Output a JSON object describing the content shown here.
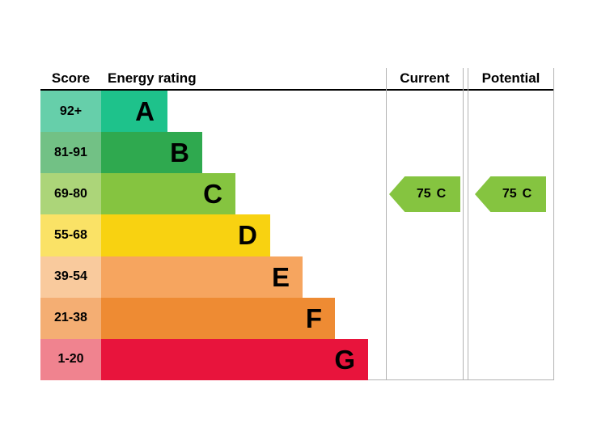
{
  "header": {
    "score": "Score",
    "energy_rating": "Energy rating",
    "current": "Current",
    "potential": "Potential"
  },
  "bands": [
    {
      "score": "92+",
      "letter": "A",
      "bar_color": "#1ec28b",
      "score_color": "#66cfaa"
    },
    {
      "score": "81-91",
      "letter": "B",
      "bar_color": "#2fa94f",
      "score_color": "#72c185"
    },
    {
      "score": "69-80",
      "letter": "C",
      "bar_color": "#85c440",
      "score_color": "#acd579"
    },
    {
      "score": "55-68",
      "letter": "D",
      "bar_color": "#f8d211",
      "score_color": "#fae266"
    },
    {
      "score": "39-54",
      "letter": "E",
      "bar_color": "#f6a55f",
      "score_color": "#f9ca9d"
    },
    {
      "score": "21-38",
      "letter": "F",
      "bar_color": "#ee8b33",
      "score_color": "#f4ae73"
    },
    {
      "score": "1-20",
      "letter": "G",
      "bar_color": "#e8143c",
      "score_color": "#f0838f"
    }
  ],
  "current": {
    "score": "75",
    "band": "C",
    "arrow_color": "#85c440"
  },
  "potential": {
    "score": "75",
    "band": "C",
    "arrow_color": "#85c440"
  },
  "chart_data": {
    "type": "bar",
    "title": "EPC energy rating chart",
    "categories": [
      "A",
      "B",
      "C",
      "D",
      "E",
      "F",
      "G"
    ],
    "score_ranges": [
      "92+",
      "81-91",
      "69-80",
      "55-68",
      "39-54",
      "21-38",
      "1-20"
    ],
    "bar_lengths_relative": [
      1,
      1.52,
      2.02,
      2.55,
      3.04,
      3.52,
      4.02
    ],
    "columns": [
      "Score",
      "Energy rating",
      "Current",
      "Potential"
    ],
    "current": {
      "score": 75,
      "band": "C"
    },
    "potential": {
      "score": 75,
      "band": "C"
    },
    "band_colors": [
      "#1ec28b",
      "#2fa94f",
      "#85c440",
      "#f8d211",
      "#f6a55f",
      "#ee8b33",
      "#e8143c"
    ],
    "grid": false,
    "legend_position": "none"
  }
}
